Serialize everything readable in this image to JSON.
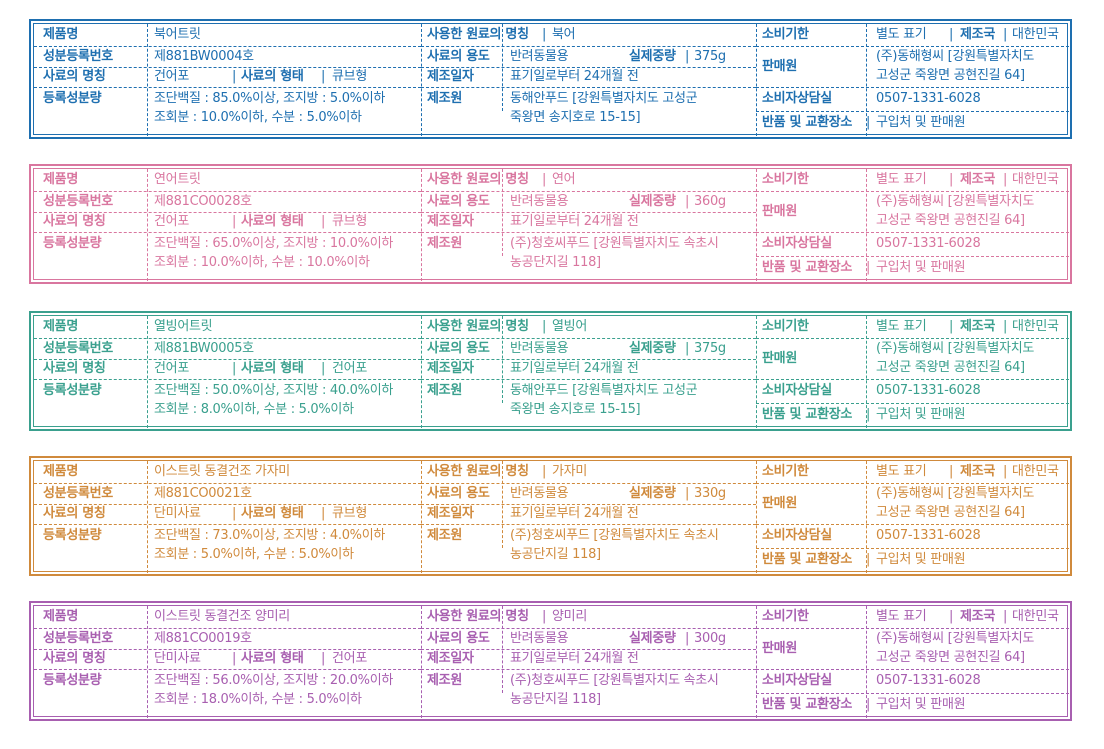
{
  "labels": {
    "product_name": "제품명",
    "reg_no": "성분등록번호",
    "feed_name": "사료의 명칭",
    "feed_form": "사료의 형태",
    "reg_components": "등록성분량",
    "raw_material": "사용한 원료의 명칭",
    "feed_use": "사료의 용도",
    "net_weight": "실제중량",
    "mfg_date": "제조일자",
    "manufacturer": "제조원",
    "expiry": "소비기한",
    "country": "제조국",
    "seller": "판매원",
    "cs_center": "소비자상담실",
    "return_place": "반품 및 교환장소"
  },
  "cards": [
    {
      "color": "#1e6fb0",
      "product_name": "북어트릿",
      "reg_no": "제881BW0004호",
      "feed_name": "건어포",
      "feed_form": "큐브형",
      "components_line1": "조단백질 : 85.0%이상, 조지방 : 5.0%이하",
      "components_line2": "조회분 : 10.0%이하, 수분 : 5.0%이하",
      "raw_material": "북어",
      "feed_use": "반려동물용",
      "net_weight": "375g",
      "mfg_date": "표기일로부터 24개월 전",
      "manufacturer_line1": "동해안푸드 [강원특별자치도 고성군",
      "manufacturer_line2": "죽왕면 송지호로 15-15]",
      "expiry": "별도 표기",
      "country": "대한민국",
      "seller_line1": "(주)동해형씨 [강원특별자치도",
      "seller_line2": "고성군 죽왕면 공현진길 64]",
      "cs_phone": "0507-1331-6028",
      "return_place": "구입처 및 판매원"
    },
    {
      "color": "#d9769f",
      "product_name": "연어트릿",
      "reg_no": "제881CO0028호",
      "feed_name": "건어포",
      "feed_form": "큐브형",
      "components_line1": "조단백질 : 65.0%이상, 조지방 : 10.0%이하",
      "components_line2": "조회분 : 10.0%이하, 수분 : 10.0%이하",
      "raw_material": "연어",
      "feed_use": "반려동물용",
      "net_weight": "360g",
      "mfg_date": "표기일로부터 24개월 전",
      "manufacturer_line1": "(주)청호씨푸드 [강원특별자치도 속초시",
      "manufacturer_line2": "농공단지길 118]",
      "expiry": "별도 표기",
      "country": "대한민국",
      "seller_line1": "(주)동해형씨 [강원특별자치도",
      "seller_line2": "고성군 죽왕면 공현진길 64]",
      "cs_phone": "0507-1331-6028",
      "return_place": "구입처 및 판매원"
    },
    {
      "color": "#3aa08e",
      "product_name": "열빙어트릿",
      "reg_no": "제881BW0005호",
      "feed_name": "건어포",
      "feed_form": "건어포",
      "components_line1": "조단백질 : 50.0%이상, 조지방 : 40.0%이하",
      "components_line2": "조회분 : 8.0%이하, 수분 : 5.0%이하",
      "raw_material": "열빙어",
      "feed_use": "반려동물용",
      "net_weight": "375g",
      "mfg_date": "표기일로부터 24개월 전",
      "manufacturer_line1": "동해안푸드 [강원특별자치도 고성군",
      "manufacturer_line2": "죽왕면 송지호로 15-15]",
      "expiry": "별도 표기",
      "country": "대한민국",
      "seller_line1": "(주)동해형씨 [강원특별자치도",
      "seller_line2": "고성군 죽왕면 공현진길 64]",
      "cs_phone": "0507-1331-6028",
      "return_place": "구입처 및 판매원"
    },
    {
      "color": "#d08a3c",
      "product_name": "이스트릿 동결건조 가자미",
      "reg_no": "제881CO0021호",
      "feed_name": "단미사료",
      "feed_form": "큐브형",
      "components_line1": "조단백질 : 73.0%이상, 조지방 : 4.0%이하",
      "components_line2": "조회분 : 5.0%이하, 수분 : 5.0%이하",
      "raw_material": "가자미",
      "feed_use": "반려동물용",
      "net_weight": "330g",
      "mfg_date": "표기일로부터 24개월 전",
      "manufacturer_line1": "(주)청호씨푸드 [강원특별자치도 속초시",
      "manufacturer_line2": "농공단지길 118]",
      "expiry": "별도 표기",
      "country": "대한민국",
      "seller_line1": "(주)동해형씨 [강원특별자치도",
      "seller_line2": "고성군 죽왕면 공현진길 64]",
      "cs_phone": "0507-1331-6028",
      "return_place": "구입처 및 판매원"
    },
    {
      "color": "#a85fb0",
      "product_name": "이스트릿 동결건조 양미리",
      "reg_no": "제881CO0019호",
      "feed_name": "단미사료",
      "feed_form": "건어포",
      "components_line1": "조단백질 : 56.0%이상, 조지방 : 20.0%이하",
      "components_line2": "조회분 : 18.0%이하, 수분 : 5.0%이하",
      "raw_material": "양미리",
      "feed_use": "반려동물용",
      "net_weight": "300g",
      "mfg_date": "표기일로부터 24개월 전",
      "manufacturer_line1": "(주)청호씨푸드 [강원특별자치도 속초시",
      "manufacturer_line2": "농공단지길 118]",
      "expiry": "별도 표기",
      "country": "대한민국",
      "seller_line1": "(주)동해형씨 [강원특별자치도",
      "seller_line2": "고성군 죽왕면 공현진길 64]",
      "cs_phone": "0507-1331-6028",
      "return_place": "구입처 및 판매원"
    }
  ]
}
